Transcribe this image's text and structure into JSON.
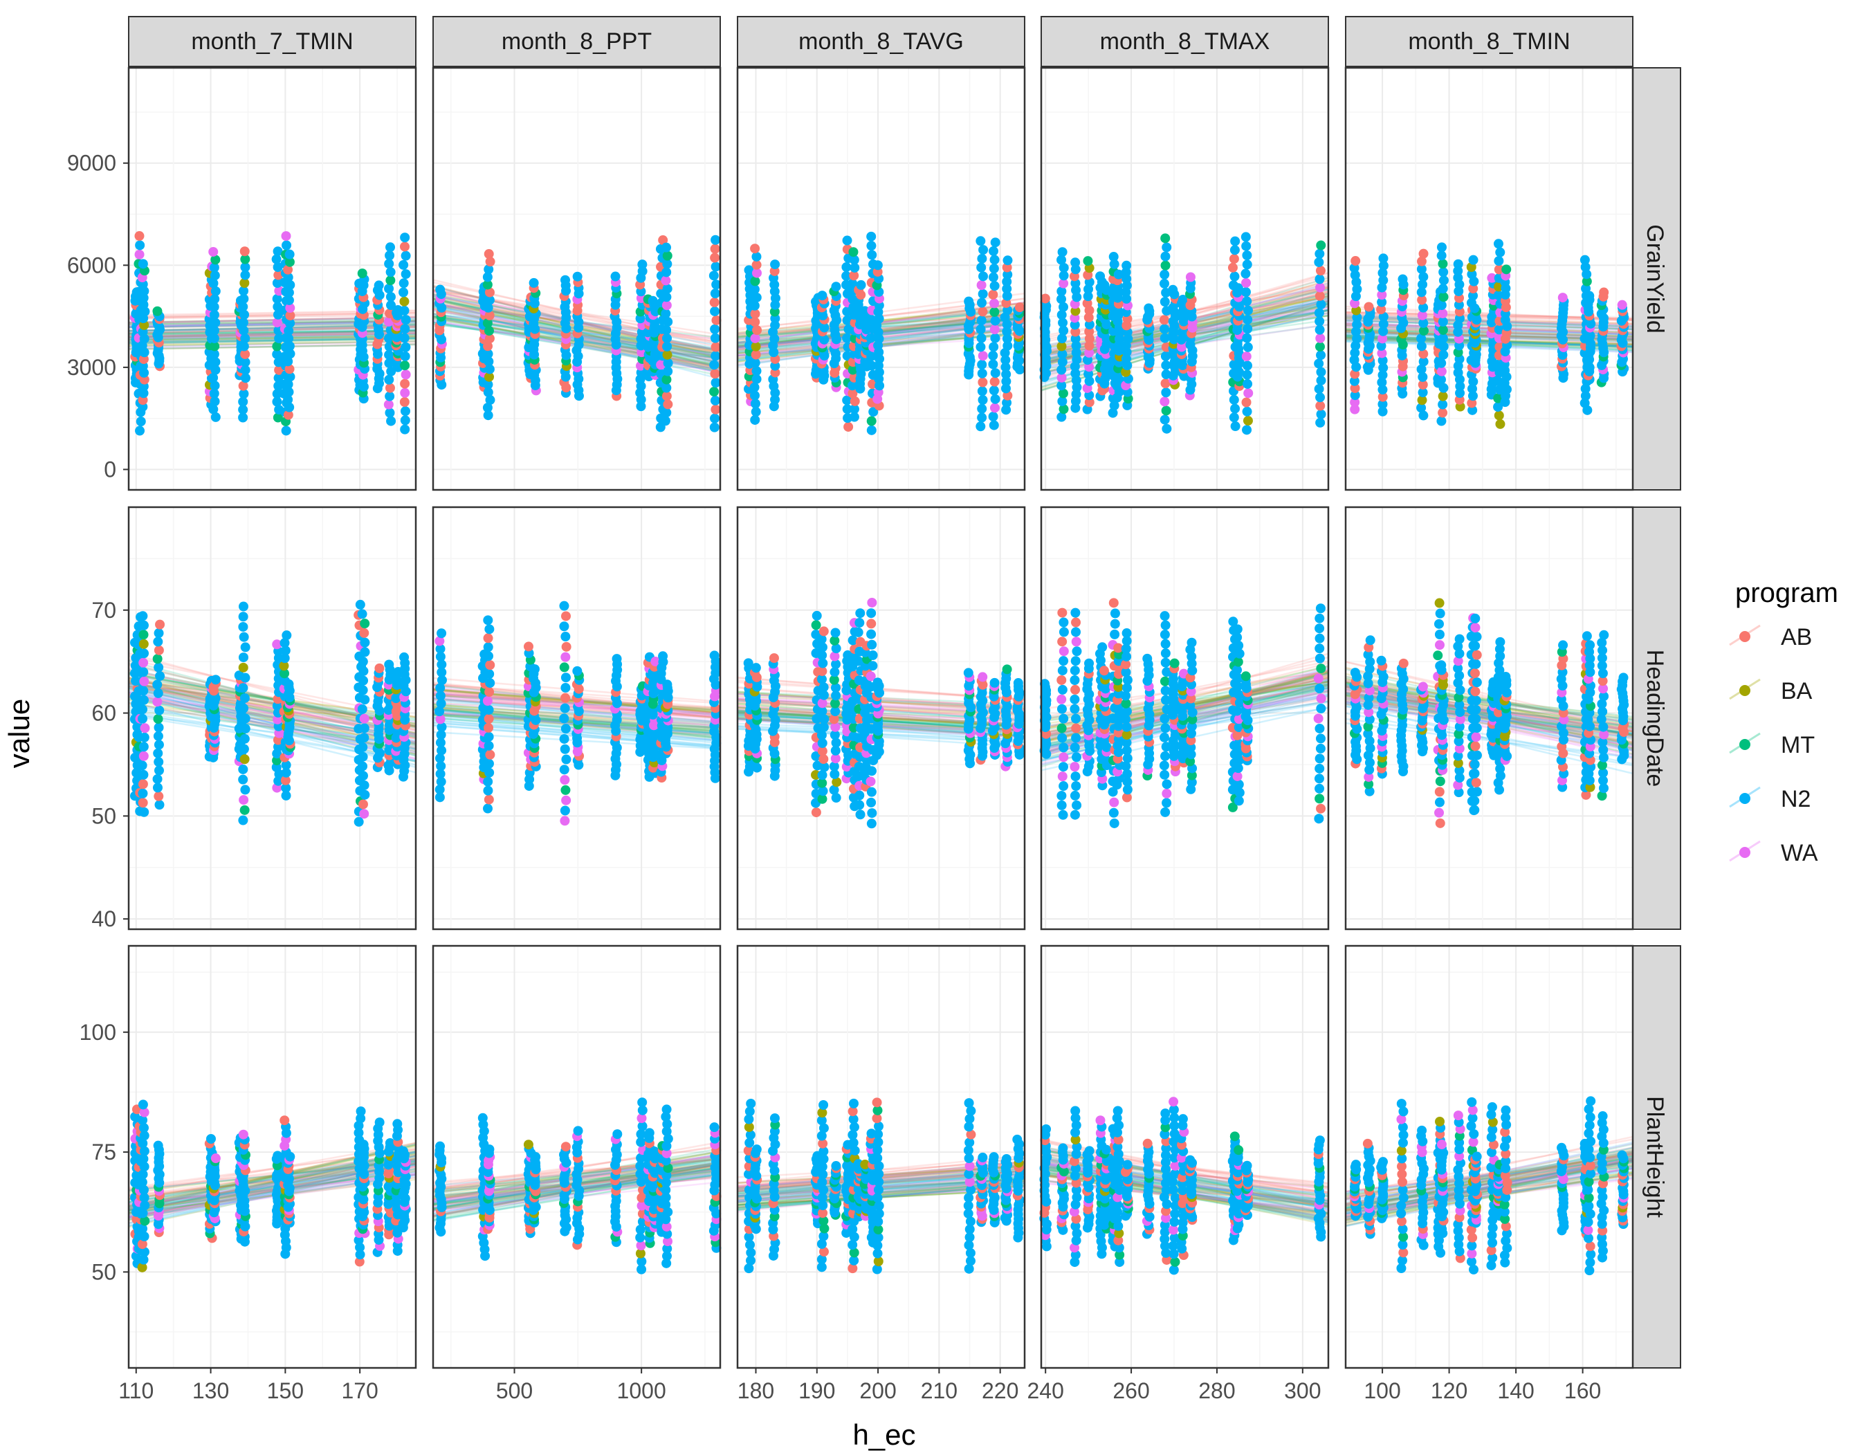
{
  "chart_data": {
    "type": "scatter",
    "xlabel": "h_ec",
    "ylabel": "value",
    "legend": {
      "title": "program",
      "placement": "right",
      "entries": [
        {
          "name": "AB",
          "color": "#F8766D"
        },
        {
          "name": "BA",
          "color": "#A3A500"
        },
        {
          "name": "MT",
          "color": "#00BF7D"
        },
        {
          "name": "N2",
          "color": "#00B0F6"
        },
        {
          "name": "WA",
          "color": "#E76BF3"
        }
      ]
    },
    "grid": true,
    "fitted_lines": "many semi-transparent linear fits per program",
    "columns": [
      {
        "label": "month_7_TMIN",
        "xlim": [
          108,
          185
        ],
        "xticks": [
          110,
          130,
          150,
          170
        ],
        "x_values": [
          110,
          111,
          112,
          116,
          130,
          131,
          138,
          139,
          148,
          150,
          151,
          170,
          171,
          175,
          178,
          180,
          182
        ]
      },
      {
        "label": "month_8_PPT",
        "xlim": [
          180,
          1310
        ],
        "xticks": [
          500,
          1000
        ],
        "x_values": [
          210,
          380,
          400,
          560,
          580,
          700,
          750,
          900,
          1000,
          1030,
          1050,
          1080,
          1100,
          1290
        ]
      },
      {
        "label": "month_8_TAVG",
        "xlim": [
          177,
          224
        ],
        "xticks": [
          180,
          190,
          200,
          210,
          220
        ],
        "x_values": [
          179,
          180,
          183,
          190,
          191,
          193,
          195,
          196,
          197,
          198,
          199,
          200,
          215,
          217,
          219,
          221,
          223
        ]
      },
      {
        "label": "month_8_TMAX",
        "xlim": [
          239,
          306
        ],
        "xticks": [
          240,
          260,
          280,
          300
        ],
        "x_values": [
          240,
          244,
          247,
          250,
          253,
          254,
          256,
          257,
          259,
          264,
          268,
          270,
          272,
          274,
          284,
          285,
          287,
          304
        ]
      },
      {
        "label": "month_8_TMIN",
        "xlim": [
          89,
          175
        ],
        "xticks": [
          100,
          120,
          140,
          160
        ],
        "x_values": [
          92,
          96,
          100,
          106,
          112,
          117,
          118,
          123,
          127,
          128,
          133,
          135,
          137,
          154,
          161,
          162,
          166,
          172
        ]
      }
    ],
    "rows": [
      {
        "label": "GrainYield",
        "ylim": [
          -600,
          11800
        ],
        "yticks": [
          0,
          3000,
          6000,
          9000
        ],
        "center": 4000,
        "spread": 1600,
        "low": -200,
        "high": 11100,
        "slopes": [
          0.05,
          -0.55,
          0.3,
          0.65,
          -0.1
        ]
      },
      {
        "label": "HeadingDate",
        "ylim": [
          39,
          80
        ],
        "yticks": [
          40,
          50,
          60,
          70
        ],
        "center": 60,
        "spread": 6,
        "low": 43,
        "high": 77.5,
        "slopes": [
          -0.5,
          -0.2,
          -0.15,
          0.55,
          -0.45
        ]
      },
      {
        "label": "PlantHeight",
        "ylim": [
          30,
          118
        ],
        "yticks": [
          50,
          75,
          100
        ],
        "center": 68,
        "spread": 10,
        "low": 35,
        "high": 114,
        "slopes": [
          0.55,
          0.45,
          0.25,
          -0.5,
          0.55
        ]
      }
    ]
  }
}
